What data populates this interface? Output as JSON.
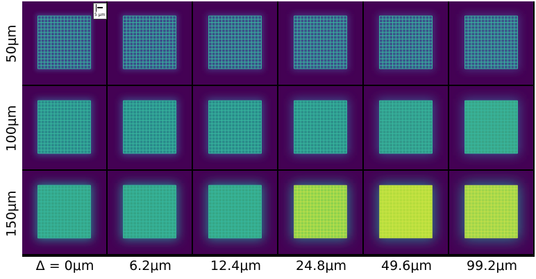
{
  "row_labels": [
    "50μm",
    "100μm",
    "150μm"
  ],
  "column_labels": [
    "Δ = 0μm",
    "6.2μm",
    "12.4μm",
    "24.8μm",
    "49.6μm",
    "99.2μm"
  ],
  "scale_bar": {
    "label": "5 μm"
  },
  "colors": {
    "background": "#440154",
    "grid_lines": "#38b9a0",
    "row_fills": [
      [
        "#3b4f8a",
        "#3b4f8a",
        "#3b5189",
        "#3c528a",
        "#3a548b",
        "#3b568b"
      ],
      [
        "#2a8a8b",
        "#2a8a8b",
        "#2a8b8a",
        "#2c908a",
        "#31988a",
        "#38a588"
      ],
      [
        "#33a487",
        "#33a487",
        "#35a786",
        "#8fd24c",
        "#b5dd3c",
        "#a0d54a"
      ]
    ],
    "glow": [
      "#46337e",
      "#3e4b89",
      "#2c7a8e"
    ]
  }
}
